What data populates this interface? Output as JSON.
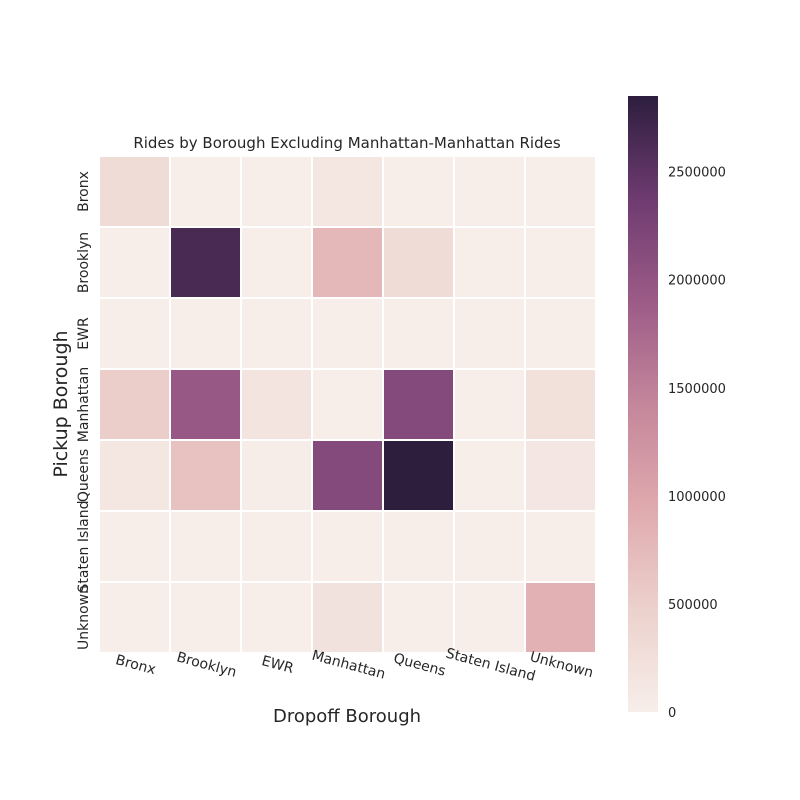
{
  "chart_data": {
    "type": "heatmap",
    "title": "Rides by Borough Excluding Manhattan-Manhattan Rides",
    "xlabel": "Dropoff Borough",
    "ylabel": "Pickup Borough",
    "x_categories": [
      "Bronx",
      "Brooklyn",
      "EWR",
      "Manhattan",
      "Queens",
      "Staten Island",
      "Unknown"
    ],
    "y_categories": [
      "Bronx",
      "Brooklyn",
      "EWR",
      "Manhattan",
      "Queens",
      "Staten Island",
      "Unknown"
    ],
    "values": [
      [
        300000,
        20000,
        15000,
        120000,
        15000,
        5000,
        20000
      ],
      [
        20000,
        2650000,
        10000,
        780000,
        300000,
        10000,
        20000
      ],
      [
        3000,
        10000,
        3000,
        8000,
        4000,
        200,
        5000
      ],
      [
        520000,
        1950000,
        170000,
        0,
        2150000,
        20000,
        230000
      ],
      [
        120000,
        650000,
        30000,
        2150000,
        2850000,
        10000,
        110000
      ],
      [
        5000,
        20000,
        1000,
        10000,
        15000,
        10000,
        10000
      ],
      [
        20000,
        20000,
        10000,
        200000,
        20000,
        3000,
        850000
      ]
    ],
    "colorbar": {
      "vmin": 0,
      "vmax": 2850000,
      "ticks": [
        "0",
        "500000",
        "1000000",
        "1500000",
        "2000000",
        "2500000"
      ]
    },
    "colormap_stops": [
      "#f7eeea",
      "#ecd1cc",
      "#dfa9ad",
      "#c4869b",
      "#9c5b87",
      "#6e3b70",
      "#2d1e3e"
    ],
    "grid": false,
    "cell_border_color": "#ffffff"
  }
}
